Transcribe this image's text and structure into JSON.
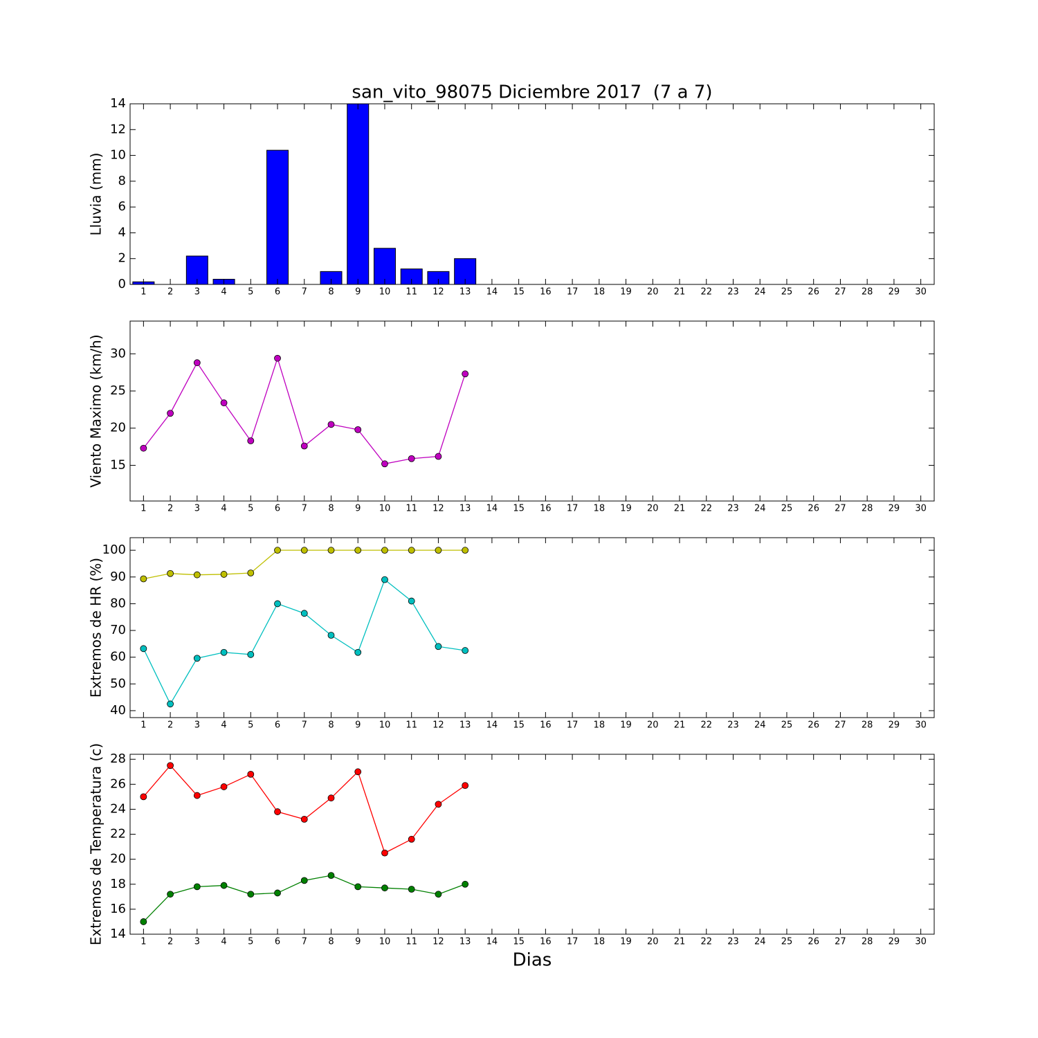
{
  "chart_data": [
    {
      "type": "bar",
      "title": "san_vito_98075 Diciembre 2017  (7 a 7)",
      "ylabel": "Lluvia (mm)",
      "x": [
        1,
        2,
        3,
        4,
        5,
        6,
        7,
        8,
        9,
        10,
        11,
        12,
        13
      ],
      "values": [
        0.2,
        0,
        2.2,
        0.4,
        0,
        10.4,
        0,
        1.0,
        14,
        2.8,
        1.2,
        1.0,
        2.0
      ],
      "color": "#0000ff",
      "xlim": [
        0.5,
        30.5
      ],
      "xticks": [
        1,
        2,
        3,
        4,
        5,
        6,
        7,
        8,
        9,
        10,
        11,
        12,
        13,
        14,
        15,
        16,
        17,
        18,
        19,
        20,
        21,
        22,
        23,
        24,
        25,
        26,
        27,
        28,
        29,
        30
      ],
      "ylim": [
        0,
        14
      ],
      "yticks": [
        0,
        2,
        4,
        6,
        8,
        10,
        12,
        14
      ]
    },
    {
      "type": "line",
      "ylabel": "Viento Maximo (km/h)",
      "x": [
        1,
        2,
        3,
        4,
        5,
        6,
        7,
        8,
        9,
        10,
        11,
        12,
        13
      ],
      "series": [
        {
          "color": "#bf00bf",
          "values": [
            17.3,
            22.0,
            28.8,
            23.4,
            18.3,
            29.4,
            17.6,
            20.5,
            19.8,
            15.2,
            15.9,
            16.2,
            27.3
          ]
        }
      ],
      "xlim": [
        0.5,
        30.5
      ],
      "xticks": [
        1,
        2,
        3,
        4,
        5,
        6,
        7,
        8,
        9,
        10,
        11,
        12,
        13,
        14,
        15,
        16,
        17,
        18,
        19,
        20,
        21,
        22,
        23,
        24,
        25,
        26,
        27,
        28,
        29,
        30
      ],
      "ylim": [
        10.2,
        34.4
      ],
      "yticks": [
        15,
        20,
        25,
        30
      ]
    },
    {
      "type": "line",
      "ylabel": "Extremos de HR (%)",
      "x": [
        1,
        2,
        3,
        4,
        5,
        6,
        7,
        8,
        9,
        10,
        11,
        12,
        13
      ],
      "series": [
        {
          "color": "#bfbf00",
          "values": [
            89.3,
            91.3,
            90.8,
            91.0,
            91.5,
            100,
            100,
            100,
            100,
            100,
            100,
            100,
            100
          ]
        },
        {
          "color": "#00bfbf",
          "values": [
            63.2,
            42.5,
            59.6,
            61.8,
            61.0,
            80.0,
            76.4,
            68.2,
            61.8,
            89.0,
            81.0,
            64.0,
            62.5
          ]
        }
      ],
      "xlim": [
        0.5,
        30.5
      ],
      "xticks": [
        1,
        2,
        3,
        4,
        5,
        6,
        7,
        8,
        9,
        10,
        11,
        12,
        13,
        14,
        15,
        16,
        17,
        18,
        19,
        20,
        21,
        22,
        23,
        24,
        25,
        26,
        27,
        28,
        29,
        30
      ],
      "ylim": [
        37.4,
        104.7
      ],
      "yticks": [
        40,
        50,
        60,
        70,
        80,
        90,
        100
      ]
    },
    {
      "type": "line",
      "ylabel": "Extremos de Temperatura (c)",
      "xlabel": "Dias",
      "x": [
        1,
        2,
        3,
        4,
        5,
        6,
        7,
        8,
        9,
        10,
        11,
        12,
        13
      ],
      "series": [
        {
          "color": "#ff0000",
          "values": [
            25.0,
            27.5,
            25.1,
            25.8,
            26.8,
            23.8,
            23.2,
            24.9,
            27.0,
            20.5,
            21.6,
            24.4,
            25.9
          ]
        },
        {
          "color": "#008000",
          "values": [
            15.0,
            17.2,
            17.8,
            17.9,
            17.2,
            17.3,
            18.3,
            18.7,
            17.8,
            17.7,
            17.6,
            17.2,
            18.0
          ]
        }
      ],
      "xlim": [
        0.5,
        30.5
      ],
      "xticks": [
        1,
        2,
        3,
        4,
        5,
        6,
        7,
        8,
        9,
        10,
        11,
        12,
        13,
        14,
        15,
        16,
        17,
        18,
        19,
        20,
        21,
        22,
        23,
        24,
        25,
        26,
        27,
        28,
        29,
        30
      ],
      "ylim": [
        14,
        28.4
      ],
      "yticks": [
        14,
        16,
        18,
        20,
        22,
        24,
        26,
        28
      ]
    }
  ]
}
